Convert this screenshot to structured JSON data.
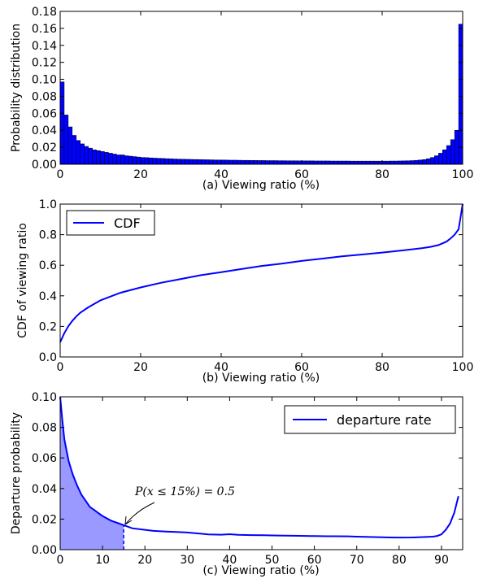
{
  "colors": {
    "bar_fill": "#0000ff",
    "line": "#0000ff",
    "shade": "#9999ff",
    "axes": "#000000"
  },
  "chart_data": [
    {
      "type": "bar",
      "xlabel": "(a) Viewing ratio (%)",
      "ylabel": "Probability distribution",
      "xlim": [
        0,
        100
      ],
      "ylim": [
        0,
        0.18
      ],
      "xticks": [
        "0",
        "20",
        "40",
        "60",
        "80",
        "100"
      ],
      "yticks": [
        "0.00",
        "0.02",
        "0.04",
        "0.06",
        "0.08",
        "0.10",
        "0.12",
        "0.14",
        "0.16",
        "0.18"
      ],
      "bin_width": 1,
      "values": [
        0.097,
        0.058,
        0.044,
        0.034,
        0.028,
        0.024,
        0.021,
        0.019,
        0.017,
        0.016,
        0.015,
        0.014,
        0.013,
        0.012,
        0.011,
        0.011,
        0.01,
        0.0095,
        0.009,
        0.0085,
        0.008,
        0.0078,
        0.0075,
        0.0072,
        0.007,
        0.0068,
        0.0066,
        0.0064,
        0.0062,
        0.006,
        0.0059,
        0.0058,
        0.0057,
        0.0056,
        0.0055,
        0.0054,
        0.0053,
        0.0052,
        0.0051,
        0.005,
        0.005,
        0.0049,
        0.0048,
        0.0048,
        0.0047,
        0.0046,
        0.0046,
        0.0045,
        0.0045,
        0.0044,
        0.0044,
        0.0043,
        0.0043,
        0.0043,
        0.0042,
        0.0042,
        0.0041,
        0.0041,
        0.0041,
        0.004,
        0.004,
        0.004,
        0.004,
        0.0039,
        0.0039,
        0.0039,
        0.0039,
        0.0038,
        0.0038,
        0.0038,
        0.0038,
        0.0038,
        0.0037,
        0.0037,
        0.0037,
        0.0037,
        0.0037,
        0.0037,
        0.0037,
        0.0037,
        0.0037,
        0.0037,
        0.0038,
        0.0038,
        0.0039,
        0.004,
        0.0041,
        0.0043,
        0.0046,
        0.005,
        0.0055,
        0.0065,
        0.008,
        0.01,
        0.013,
        0.017,
        0.022,
        0.029,
        0.04,
        0.165
      ]
    },
    {
      "type": "line",
      "xlabel": "(b) Viewing ratio (%)",
      "ylabel": "CDF of viewing ratio",
      "xlim": [
        0,
        100
      ],
      "ylim": [
        0,
        1.0
      ],
      "xticks": [
        "0",
        "20",
        "40",
        "60",
        "80",
        "100"
      ],
      "yticks": [
        "0.0",
        "0.2",
        "0.4",
        "0.6",
        "0.8",
        "1.0"
      ],
      "legend": [
        "CDF"
      ],
      "legend_position": "top-left",
      "series": [
        {
          "name": "CDF",
          "x": [
            0,
            1,
            2,
            3,
            4,
            5,
            7,
            10,
            15,
            20,
            25,
            30,
            35,
            40,
            45,
            50,
            55,
            60,
            65,
            70,
            75,
            80,
            85,
            90,
            92,
            94,
            96,
            97,
            98,
            99,
            100
          ],
          "y": [
            0.097,
            0.155,
            0.2,
            0.235,
            0.265,
            0.29,
            0.325,
            0.37,
            0.42,
            0.455,
            0.485,
            0.51,
            0.535,
            0.555,
            0.575,
            0.595,
            0.61,
            0.628,
            0.643,
            0.658,
            0.67,
            0.683,
            0.697,
            0.712,
            0.72,
            0.732,
            0.755,
            0.775,
            0.8,
            0.835,
            1.0
          ]
        }
      ]
    },
    {
      "type": "area",
      "xlabel": "(c) Viewing ratio (%)",
      "ylabel": "Departure probability",
      "xlim": [
        0,
        95
      ],
      "ylim": [
        0,
        0.1
      ],
      "xticks": [
        "0",
        "10",
        "20",
        "30",
        "40",
        "50",
        "60",
        "70",
        "80",
        "90"
      ],
      "yticks": [
        "0.00",
        "0.02",
        "0.04",
        "0.06",
        "0.08",
        "0.10"
      ],
      "legend": [
        "departure rate"
      ],
      "legend_position": "top-right",
      "shaded_until_x": 15,
      "annotation": "P(x ≤ 15%) = 0.5",
      "series": [
        {
          "name": "departure rate",
          "x": [
            0,
            0.5,
            1,
            2,
            3,
            4,
            5,
            6,
            7,
            8,
            9,
            10,
            12,
            14,
            15,
            17,
            20,
            22,
            25,
            28,
            30,
            33,
            35,
            38,
            40,
            42,
            45,
            48,
            50,
            53,
            55,
            58,
            60,
            63,
            65,
            68,
            70,
            73,
            75,
            78,
            80,
            83,
            85,
            88,
            89,
            90,
            91,
            92,
            93,
            94
          ],
          "y": [
            0.1,
            0.085,
            0.072,
            0.058,
            0.049,
            0.042,
            0.036,
            0.032,
            0.028,
            0.026,
            0.024,
            0.022,
            0.019,
            0.017,
            0.016,
            0.014,
            0.013,
            0.0123,
            0.0118,
            0.0115,
            0.0112,
            0.0105,
            0.01,
            0.0098,
            0.0101,
            0.0097,
            0.0095,
            0.0094,
            0.0093,
            0.0092,
            0.0091,
            0.009,
            0.0089,
            0.0088,
            0.0088,
            0.0087,
            0.0085,
            0.0083,
            0.0082,
            0.008,
            0.0079,
            0.008,
            0.0082,
            0.0085,
            0.009,
            0.01,
            0.013,
            0.017,
            0.024,
            0.035
          ]
        }
      ]
    }
  ]
}
